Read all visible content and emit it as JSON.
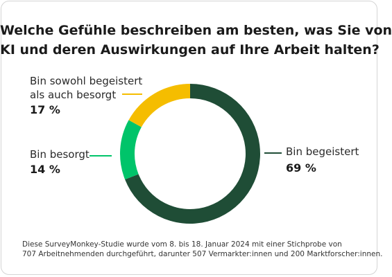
{
  "title_lines": [
    "Welche Gefühle beschreiben am besten, was Sie von",
    "KI und deren Auswirkungen auf Ihre Arbeit halten?"
  ],
  "chart_data": {
    "type": "pie",
    "variant": "donut",
    "title": "Welche Gefühle beschreiben am besten, was Sie von KI und deren Auswirkungen auf Ihre Arbeit halten?",
    "slices": [
      {
        "label": "Bin begeistert",
        "value": 69,
        "value_label": "69 %",
        "color": "#1f4d36"
      },
      {
        "label": "Bin besorgt",
        "value": 14,
        "value_label": "14 %",
        "color": "#00c46a"
      },
      {
        "label": "Bin sowohl begeistert als auch besorgt",
        "value": 17,
        "value_label": "17 %",
        "color": "#f5bd00"
      }
    ]
  },
  "labels": {
    "both_line1": "Bin sowohl begeistert",
    "both_line2": "als auch besorgt",
    "worried": "Bin besorgt",
    "excited": "Bin begeistert"
  },
  "footnote_lines": [
    "Diese SurveyMonkey-Studie wurde vom 8. bis 18. Januar 2024 mit einer Stichprobe von",
    "707 Arbeitnehmenden durchgeführt, darunter 507 Vermarkter:innen und 200 Marktforscher:innen."
  ]
}
